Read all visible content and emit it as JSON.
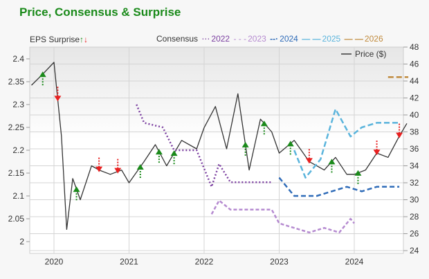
{
  "header": {
    "title": "Price, Consensus & Surprise"
  },
  "legend": {
    "eps_label": "EPS Surprise",
    "eps_up_glyph": "🠕",
    "eps_down_glyph": "🠗",
    "consensus_label": "Consensus",
    "consensus_series": [
      {
        "year": "2022",
        "color": "#7b3fa0",
        "style": "dotted"
      },
      {
        "year": "2023",
        "color": "#b58ad0",
        "style": "dashed"
      },
      {
        "year": "2024",
        "color": "#2e6bb8",
        "style": "dashed"
      },
      {
        "year": "2025",
        "color": "#5ab4dc",
        "style": "dashed"
      },
      {
        "year": "2026",
        "color": "#c08a3c",
        "style": "dashed"
      }
    ],
    "price_label": "Price ($)"
  },
  "colors": {
    "title": "#1a8a1a",
    "price": "#333333",
    "surprise_up": "#1a8a1a",
    "surprise_down": "#e82020",
    "grid": "#d4d4d4"
  },
  "chart_data": {
    "type": "line",
    "title": "Price, Consensus & Surprise",
    "xlabel": "",
    "ylabel_left": "EPS",
    "ylabel_right": "Price ($)",
    "x_ticks": [
      "2020",
      "2021",
      "2022",
      "2023",
      "2024"
    ],
    "y_left_ticks": [
      "2",
      "2.05",
      "2.1",
      "2.15",
      "2.2",
      "2.25",
      "2.3",
      "2.35",
      "2.4"
    ],
    "y_right_ticks": [
      "24",
      "26",
      "28",
      "30",
      "32",
      "34",
      "36",
      "38",
      "40",
      "42",
      "44",
      "46",
      "48"
    ],
    "ylim_left": [
      2.0,
      2.4
    ],
    "ylim_right": [
      24,
      48
    ],
    "grid": true,
    "legend_position": "top",
    "series": [
      {
        "name": "Price ($)",
        "axis": "right",
        "x": [
          2019.7,
          2019.85,
          2020.0,
          2020.1,
          2020.17,
          2020.25,
          2020.35,
          2020.5,
          2020.6,
          2020.75,
          2020.9,
          2021.0,
          2021.2,
          2021.35,
          2021.5,
          2021.7,
          2021.9,
          2022.0,
          2022.15,
          2022.3,
          2022.45,
          2022.6,
          2022.75,
          2022.9,
          2023.0,
          2023.2,
          2023.4,
          2023.6,
          2023.75,
          2023.9,
          2024.0,
          2024.15,
          2024.3,
          2024.45,
          2024.6,
          2024.7
        ],
        "values": [
          43.5,
          44.8,
          46.2,
          37.5,
          26.5,
          32.5,
          30.0,
          34.0,
          33.5,
          33.0,
          33.5,
          32.0,
          34.5,
          36.5,
          34.0,
          37.0,
          36.0,
          38.5,
          41.0,
          36.0,
          42.5,
          33.5,
          39.5,
          38.0,
          35.5,
          37.0,
          34.5,
          33.5,
          35.0,
          33.0,
          33.0,
          33.5,
          35.5,
          35.0,
          37.5,
          39.0
        ]
      },
      {
        "name": "Consensus 2022",
        "axis": "left",
        "x": [
          2021.1,
          2021.2,
          2021.45,
          2021.6,
          2021.9,
          2022.1,
          2022.2,
          2022.35,
          2022.9
        ],
        "values": [
          2.3,
          2.26,
          2.25,
          2.2,
          2.2,
          2.12,
          2.17,
          2.13,
          2.13
        ]
      },
      {
        "name": "Consensus 2023",
        "axis": "left",
        "x": [
          2022.1,
          2022.2,
          2022.35,
          2022.9,
          2023.0,
          2023.2,
          2023.4,
          2023.6,
          2023.8,
          2023.95,
          2024.0
        ],
        "values": [
          2.06,
          2.09,
          2.07,
          2.07,
          2.04,
          2.03,
          2.02,
          2.03,
          2.02,
          2.05,
          2.04
        ]
      },
      {
        "name": "Consensus 2024",
        "axis": "left",
        "x": [
          2023.0,
          2023.2,
          2023.5,
          2023.9,
          2024.1,
          2024.3,
          2024.6
        ],
        "values": [
          2.14,
          2.1,
          2.1,
          2.12,
          2.11,
          2.12,
          2.12
        ]
      },
      {
        "name": "Consensus 2025",
        "axis": "left",
        "x": [
          2023.2,
          2023.35,
          2023.55,
          2023.75,
          2023.95,
          2024.1,
          2024.3,
          2024.6
        ],
        "values": [
          2.2,
          2.14,
          2.18,
          2.29,
          2.23,
          2.25,
          2.26,
          2.26
        ]
      },
      {
        "name": "Consensus 2026",
        "axis": "left",
        "x": [
          2024.45,
          2024.7
        ],
        "values": [
          2.36,
          2.36
        ]
      }
    ],
    "eps_surprises": [
      {
        "x": 2019.85,
        "direction": "up"
      },
      {
        "x": 2020.05,
        "direction": "down"
      },
      {
        "x": 2020.3,
        "direction": "up"
      },
      {
        "x": 2020.6,
        "direction": "down"
      },
      {
        "x": 2020.85,
        "direction": "down"
      },
      {
        "x": 2021.15,
        "direction": "up"
      },
      {
        "x": 2021.4,
        "direction": "up"
      },
      {
        "x": 2021.6,
        "direction": "up"
      },
      {
        "x": 2022.55,
        "direction": "up"
      },
      {
        "x": 2022.8,
        "direction": "up"
      },
      {
        "x": 2023.15,
        "direction": "up"
      },
      {
        "x": 2023.4,
        "direction": "down"
      },
      {
        "x": 2023.7,
        "direction": "up"
      },
      {
        "x": 2024.05,
        "direction": "up"
      },
      {
        "x": 2024.3,
        "direction": "down"
      },
      {
        "x": 2024.6,
        "direction": "down"
      }
    ]
  }
}
